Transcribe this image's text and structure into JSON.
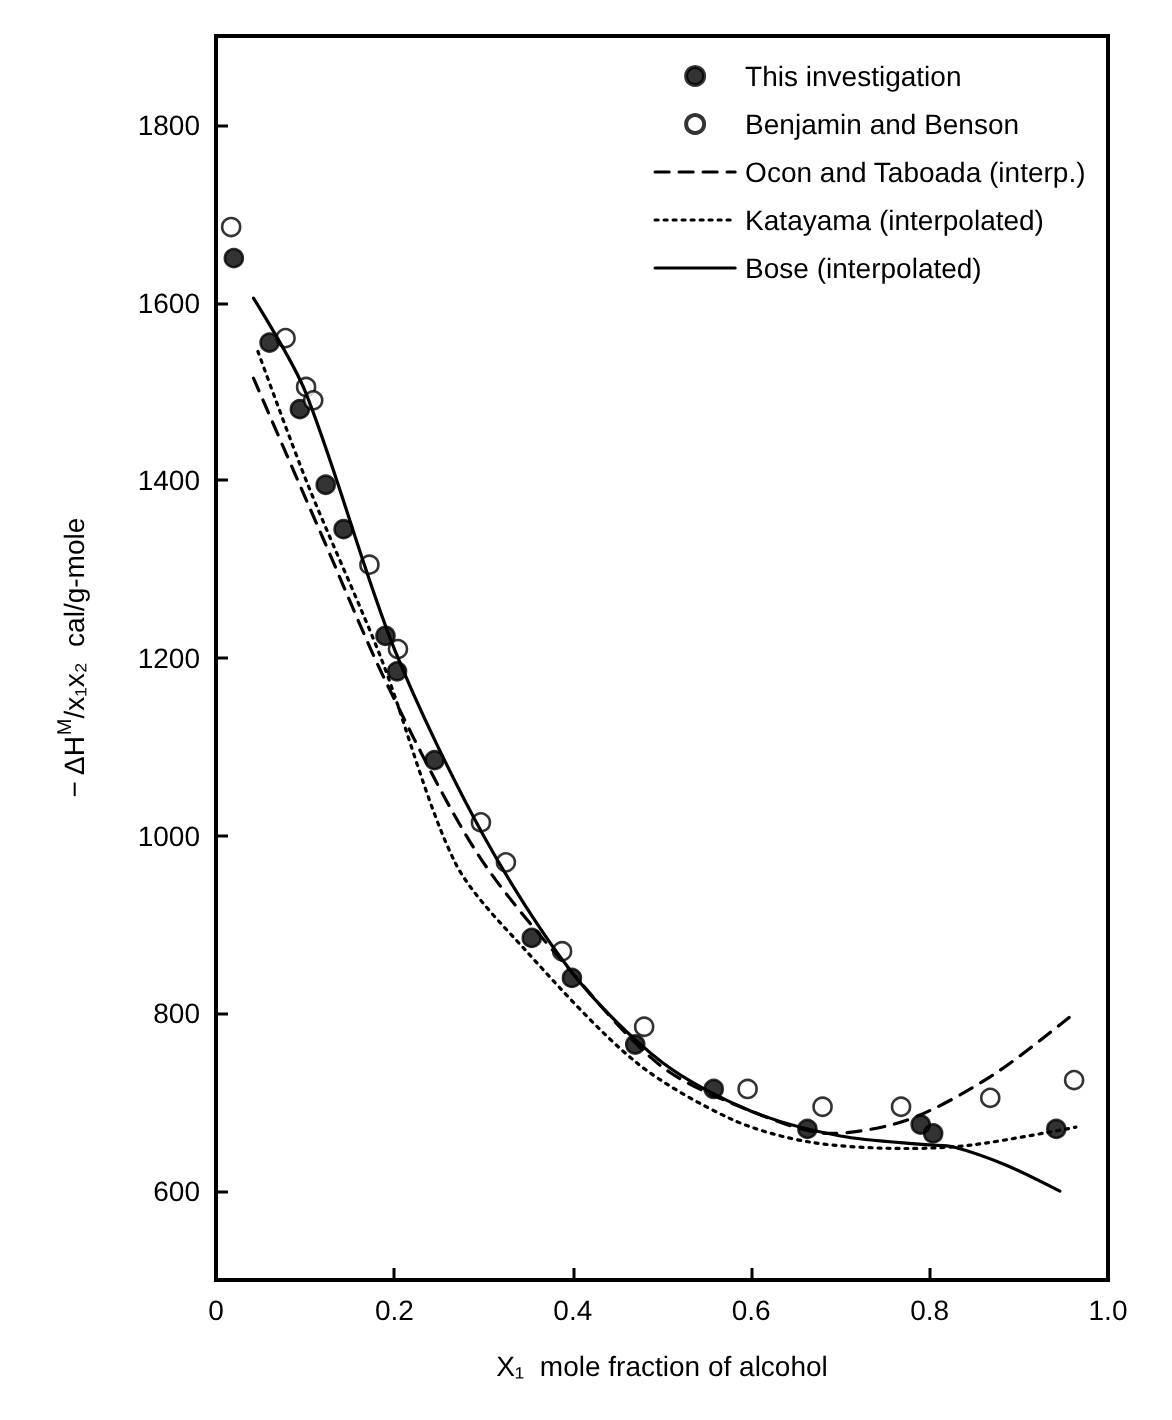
{
  "chart_data": {
    "type": "scatter",
    "xlabel": "X₁  mole fraction of alcohol",
    "ylabel": "− ΔH$^{M}$/x₁x₂  cal/g-mole",
    "xlim": [
      0,
      1
    ],
    "xticks": [
      0,
      0.2,
      0.4,
      0.6,
      0.8,
      {
        "value": 1,
        "label": "1.0"
      }
    ],
    "ylim": [
      500,
      1900
    ],
    "yticks": [
      600,
      800,
      1000,
      1200,
      1400,
      1600,
      1800
    ],
    "grid": false,
    "legend": "top right",
    "series": [
      {
        "name": "This investigation",
        "marker": "circle",
        "color": "#000000",
        "x": [
          0.02,
          0.06,
          0.094,
          0.123,
          0.143,
          0.19,
          0.203,
          0.245,
          0.354,
          0.399,
          0.47,
          0.558,
          0.663,
          0.79,
          0.804,
          0.942
        ],
        "values": [
          1650,
          1555,
          1480,
          1395,
          1345,
          1225,
          1185,
          1085,
          885,
          840,
          765,
          715,
          670,
          675,
          665,
          670
        ]
      },
      {
        "name": "Benjamin and Benson",
        "marker": "circle",
        "color": "#ffffff",
        "x": [
          0.017,
          0.078,
          0.101,
          0.109,
          0.172,
          0.204,
          0.297,
          0.325,
          0.388,
          0.48,
          0.596,
          0.68,
          0.768,
          0.868,
          0.962
        ],
        "values": [
          1685,
          1560,
          1505,
          1490,
          1305,
          1210,
          1015,
          970,
          870,
          785,
          715,
          695,
          695,
          705,
          725
        ]
      },
      {
        "name": "Ocon and Taboada (interp.)",
        "type": "line",
        "line_style": "dashed",
        "marker": "none",
        "color": "#000000",
        "x": [
          0.042,
          0.122,
          0.192,
          0.293,
          0.4,
          0.5,
          0.6,
          0.688,
          0.775,
          0.87,
          0.962
        ],
        "values": [
          1515,
          1330,
          1170,
          980,
          845,
          740,
          690,
          665,
          680,
          730,
          800
        ]
      },
      {
        "name": "Katayama (interpolated)",
        "type": "line",
        "line_style": "dotted",
        "marker": "none",
        "color": "#000000",
        "x": [
          0.047,
          0.103,
          0.185,
          0.268,
          0.348,
          0.471,
          0.58,
          0.667,
          0.775,
          0.848,
          0.964
        ],
        "values": [
          1545,
          1395,
          1200,
          970,
          870,
          745,
          680,
          655,
          648,
          652,
          672
        ]
      },
      {
        "name": "Bose (interpolated)",
        "type": "line",
        "line_style": "solid",
        "marker": "none",
        "color": "#000000",
        "x": [
          0.042,
          0.1,
          0.2,
          0.3,
          0.4,
          0.5,
          0.6,
          0.7,
          0.8,
          0.826,
          0.884,
          0.946
        ],
        "values": [
          1605,
          1500,
          1210,
          1000,
          845,
          745,
          690,
          662,
          652,
          650,
          630,
          600
        ]
      }
    ]
  }
}
